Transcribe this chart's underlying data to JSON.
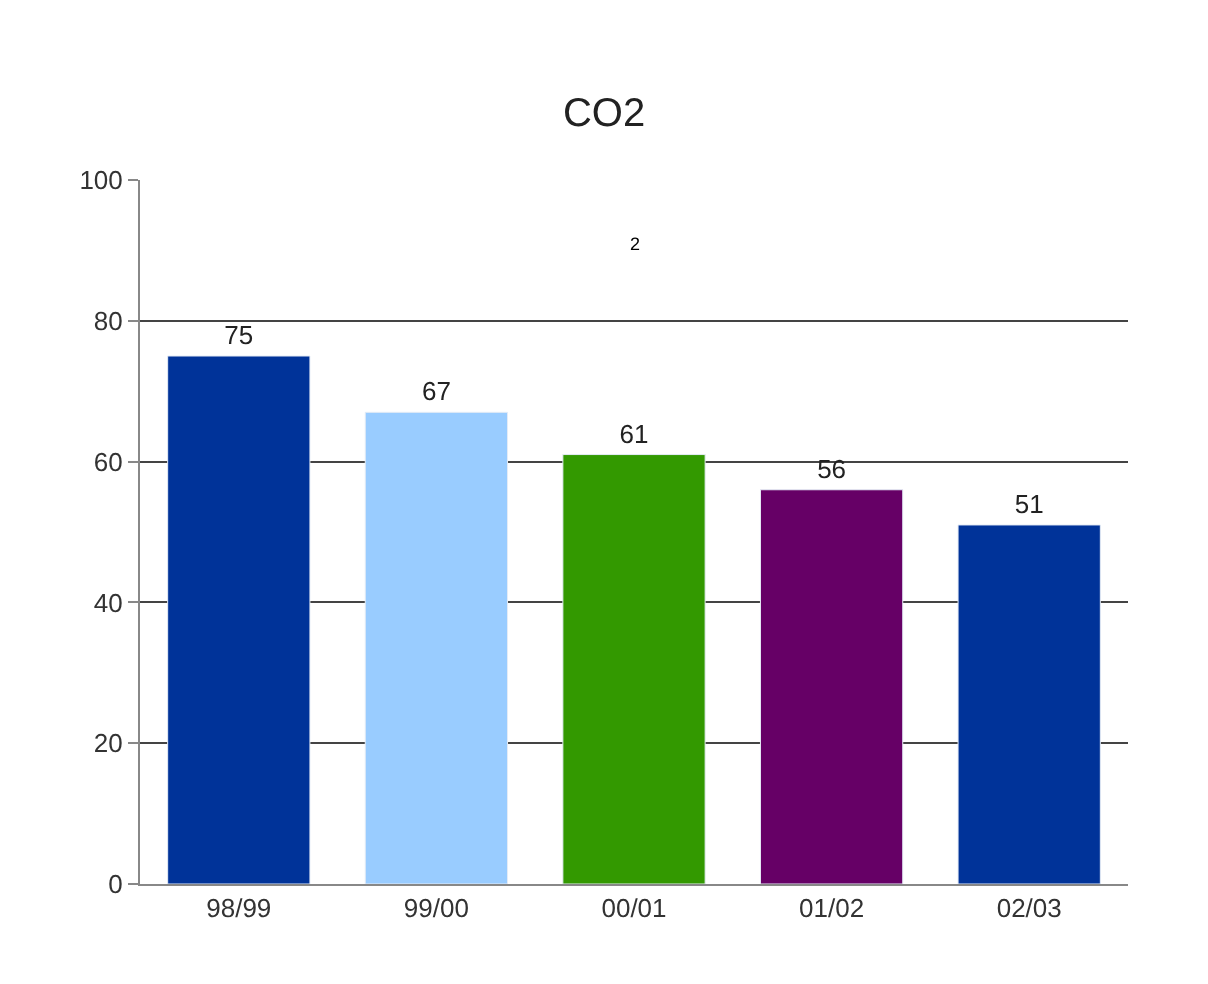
{
  "chart_data": {
    "type": "bar",
    "title": "CO2",
    "categories": [
      "98/99",
      "99/00",
      "00/01",
      "01/02",
      "02/03"
    ],
    "values": [
      75,
      67,
      61,
      56,
      51
    ],
    "colors": [
      "#003399",
      "#99ccff",
      "#339900",
      "#660066",
      "#003399"
    ],
    "data_labels": true,
    "ylim": [
      0,
      100
    ],
    "yticks": [
      0,
      20,
      40,
      60,
      80,
      100
    ],
    "grid": "y",
    "annotations": [
      "2"
    ]
  }
}
